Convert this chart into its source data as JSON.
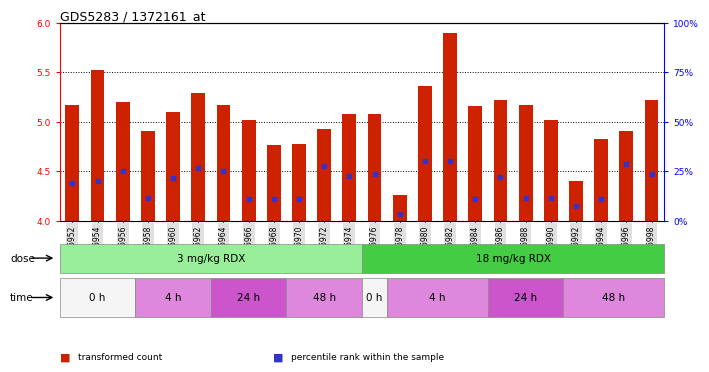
{
  "title": "GDS5283 / 1372161_at",
  "samples": [
    "GSM306952",
    "GSM306954",
    "GSM306956",
    "GSM306958",
    "GSM306960",
    "GSM306962",
    "GSM306964",
    "GSM306966",
    "GSM306968",
    "GSM306970",
    "GSM306972",
    "GSM306974",
    "GSM306976",
    "GSM306978",
    "GSM306980",
    "GSM306982",
    "GSM306984",
    "GSM306986",
    "GSM306988",
    "GSM306990",
    "GSM306992",
    "GSM306994",
    "GSM306996",
    "GSM306998"
  ],
  "bar_tops": [
    5.17,
    5.52,
    5.2,
    4.91,
    5.1,
    5.29,
    5.17,
    5.02,
    4.77,
    4.78,
    4.93,
    5.08,
    5.08,
    4.26,
    5.36,
    5.9,
    5.16,
    5.22,
    5.17,
    5.02,
    4.4,
    4.83,
    4.91,
    5.22
  ],
  "blue_dots": [
    4.38,
    4.4,
    4.5,
    4.23,
    4.43,
    4.53,
    4.5,
    4.22,
    4.22,
    4.22,
    4.55,
    4.45,
    4.47,
    4.07,
    4.6,
    4.6,
    4.22,
    4.44,
    4.23,
    4.23,
    4.15,
    4.22,
    4.57,
    4.47
  ],
  "bar_color": "#cc2200",
  "dot_color": "#3333cc",
  "ymin": 4.0,
  "ymax": 6.0,
  "yticks": [
    4.0,
    4.5,
    5.0,
    5.5,
    6.0
  ],
  "right_yticks_pct": [
    0,
    25,
    50,
    75,
    100
  ],
  "right_yticklabels": [
    "0%",
    "25%",
    "50%",
    "75%",
    "100%"
  ],
  "gridlines": [
    4.5,
    5.0,
    5.5
  ],
  "dose_groups": [
    {
      "label": "3 mg/kg RDX",
      "start": 0,
      "end": 12,
      "color": "#99ee99"
    },
    {
      "label": "18 mg/kg RDX",
      "start": 12,
      "end": 24,
      "color": "#44cc44"
    }
  ],
  "time_groups": [
    {
      "label": "0 h",
      "start": 0,
      "end": 3,
      "color": "#f5f5f5"
    },
    {
      "label": "4 h",
      "start": 3,
      "end": 6,
      "color": "#dd88dd"
    },
    {
      "label": "24 h",
      "start": 6,
      "end": 9,
      "color": "#cc55cc"
    },
    {
      "label": "48 h",
      "start": 9,
      "end": 12,
      "color": "#dd88dd"
    },
    {
      "label": "0 h",
      "start": 12,
      "end": 13,
      "color": "#f5f5f5"
    },
    {
      "label": "4 h",
      "start": 13,
      "end": 17,
      "color": "#dd88dd"
    },
    {
      "label": "24 h",
      "start": 17,
      "end": 20,
      "color": "#cc55cc"
    },
    {
      "label": "48 h",
      "start": 20,
      "end": 24,
      "color": "#dd88dd"
    }
  ],
  "legend_items": [
    {
      "label": "transformed count",
      "color": "#cc2200",
      "marker": "s"
    },
    {
      "label": "percentile rank within the sample",
      "color": "#3333cc",
      "marker": "s"
    }
  ],
  "bar_width": 0.55,
  "tick_fontsize": 6.5,
  "label_fontsize": 7.5,
  "title_fontsize": 9,
  "xtick_fontsize": 5.5
}
